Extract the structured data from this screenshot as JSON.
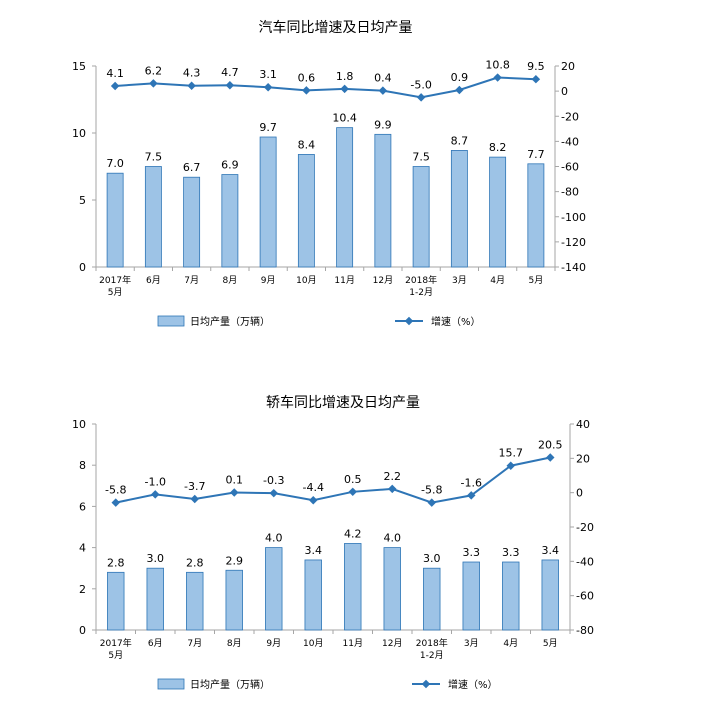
{
  "chart_data": [
    {
      "type": "bar",
      "title": "汽车同比增速及日均产量",
      "categories": [
        "2017年\n5月",
        "6月",
        "7月",
        "8月",
        "9月",
        "10月",
        "11月",
        "12月",
        "2018年\n1-2月",
        "3月",
        "4月",
        "5月"
      ],
      "series": [
        {
          "name": "日均产量（万辆）",
          "type": "bar",
          "axis": "left",
          "values": [
            7.0,
            7.5,
            6.7,
            6.9,
            9.7,
            8.4,
            10.4,
            9.9,
            7.5,
            8.7,
            8.2,
            7.7
          ]
        },
        {
          "name": "增速（%）",
          "type": "line",
          "axis": "right",
          "values": [
            4.1,
            6.2,
            4.3,
            4.7,
            3.1,
            0.6,
            1.8,
            0.4,
            -5.0,
            0.9,
            10.8,
            9.5
          ]
        }
      ],
      "ylim_left": [
        0,
        15
      ],
      "yticks_left": [
        0,
        5,
        10,
        15
      ],
      "ylim_right": [
        -140,
        20
      ],
      "yticks_right": [
        20,
        0,
        -20,
        -40,
        -60,
        -80,
        -100,
        -120,
        -140
      ],
      "grid": false,
      "legend": "bottom",
      "colors": {
        "bar_fill": "#9DC3E6",
        "bar_stroke": "#2E75B6",
        "line": "#2E75B6",
        "axis": "#A6A6A6"
      }
    },
    {
      "type": "bar",
      "title": "轿车同比增速及日均产量",
      "categories": [
        "2017年\n5月",
        "6月",
        "7月",
        "8月",
        "9月",
        "10月",
        "11月",
        "12月",
        "2018年\n1-2月",
        "3月",
        "4月",
        "5月"
      ],
      "series": [
        {
          "name": "日均产量（万辆）",
          "type": "bar",
          "axis": "left",
          "values": [
            2.8,
            3.0,
            2.8,
            2.9,
            4.0,
            3.4,
            4.2,
            4.0,
            3.0,
            3.3,
            3.3,
            3.4
          ]
        },
        {
          "name": "增速（%）",
          "type": "line",
          "axis": "right",
          "values": [
            -5.8,
            -1.0,
            -3.7,
            0.1,
            -0.3,
            -4.4,
            0.5,
            2.2,
            -5.8,
            -1.6,
            15.7,
            20.5
          ]
        }
      ],
      "ylim_left": [
        0,
        10
      ],
      "yticks_left": [
        0,
        2,
        4,
        6,
        8,
        10
      ],
      "ylim_right": [
        -80,
        40
      ],
      "yticks_right": [
        40,
        20,
        0,
        -20,
        -40,
        -60,
        -80
      ],
      "grid": false,
      "legend": "bottom",
      "colors": {
        "bar_fill": "#9DC3E6",
        "bar_stroke": "#2E75B6",
        "line": "#2E75B6",
        "axis": "#A6A6A6"
      }
    }
  ]
}
